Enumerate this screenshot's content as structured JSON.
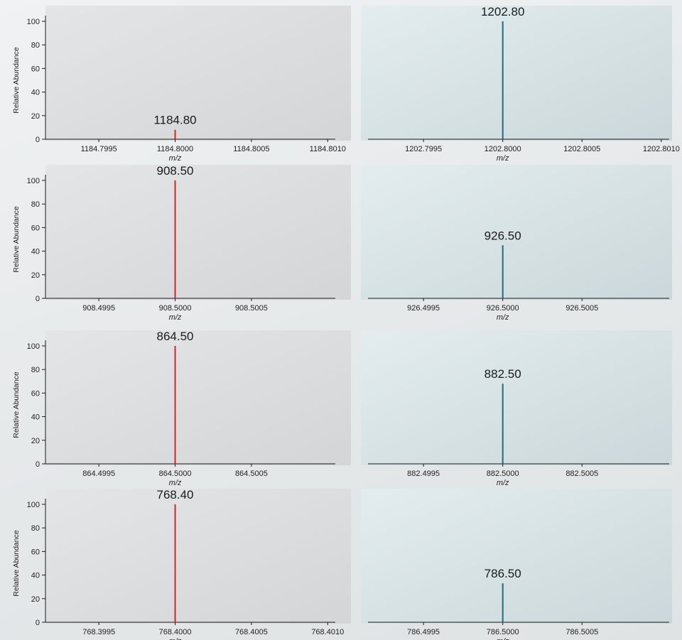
{
  "chart_data": [
    {
      "type": "bar",
      "panel": "left",
      "row": 1,
      "color": "#e02020",
      "ylabel": "Relative Abundance",
      "xlabel": "m/z",
      "xlim": [
        1184.79915,
        1184.80105
      ],
      "ylim": [
        0,
        100
      ],
      "xticks": [
        "1184.7995",
        "1184.8000",
        "1184.8005",
        "1184.8010"
      ],
      "yticks": [
        "0",
        "20",
        "40",
        "60",
        "80",
        "100"
      ],
      "peaks": [
        {
          "x": 1184.8,
          "y": 8,
          "label": "1184.80"
        }
      ]
    },
    {
      "type": "bar",
      "panel": "right",
      "row": 1,
      "color": "#1e6b80",
      "ylabel": "",
      "xlabel": "m/z",
      "xlim": [
        1202.79915,
        1202.80105
      ],
      "ylim": [
        0,
        100
      ],
      "xticks": [
        "1202.7995",
        "1202.8000",
        "1202.8005",
        "1202.8010"
      ],
      "yticks": [],
      "peaks": [
        {
          "x": 1202.8,
          "y": 100,
          "label": "1202.80"
        }
      ]
    },
    {
      "type": "bar",
      "panel": "left",
      "row": 2,
      "color": "#e02020",
      "ylabel": "Relative Abundance",
      "xlabel": "m/z",
      "xlim": [
        908.49915,
        908.50105
      ],
      "ylim": [
        0,
        100
      ],
      "xticks": [
        "908.4995",
        "908.5000",
        "908.5005"
      ],
      "yticks": [
        "0",
        "20",
        "40",
        "60",
        "80",
        "100"
      ],
      "peaks": [
        {
          "x": 908.5,
          "y": 100,
          "label": "908.50"
        }
      ]
    },
    {
      "type": "bar",
      "panel": "right",
      "row": 2,
      "color": "#1e6b80",
      "ylabel": "",
      "xlabel": "m/z",
      "xlim": [
        926.49915,
        926.50105
      ],
      "ylim": [
        0,
        100
      ],
      "xticks": [
        "926.4995",
        "926.5000",
        "926.5005"
      ],
      "yticks": [],
      "peaks": [
        {
          "x": 926.5,
          "y": 45,
          "label": "926.50"
        }
      ]
    },
    {
      "type": "bar",
      "panel": "left",
      "row": 3,
      "color": "#e02020",
      "ylabel": "Relative Abundance",
      "xlabel": "m/z",
      "xlim": [
        864.49915,
        864.50105
      ],
      "ylim": [
        0,
        100
      ],
      "xticks": [
        "864.4995",
        "864.5000",
        "864.5005"
      ],
      "yticks": [
        "0",
        "20",
        "40",
        "60",
        "80",
        "100"
      ],
      "peaks": [
        {
          "x": 864.5,
          "y": 100,
          "label": "864.50"
        }
      ]
    },
    {
      "type": "bar",
      "panel": "right",
      "row": 3,
      "color": "#1e6b80",
      "ylabel": "",
      "xlabel": "m/z",
      "xlim": [
        882.49915,
        882.50105
      ],
      "ylim": [
        0,
        100
      ],
      "xticks": [
        "882.4995",
        "882.5000",
        "882.5005"
      ],
      "yticks": [],
      "peaks": [
        {
          "x": 882.5,
          "y": 68,
          "label": "882.50"
        }
      ]
    },
    {
      "type": "bar",
      "panel": "left",
      "row": 4,
      "color": "#e02020",
      "ylabel": "Relative Abundance",
      "xlabel": "m/z",
      "xlim": [
        768.39915,
        768.40105
      ],
      "ylim": [
        0,
        100
      ],
      "xticks": [
        "768.3995",
        "768.4000",
        "768.4005",
        "768.4010"
      ],
      "yticks": [
        "0",
        "20",
        "40",
        "60",
        "80",
        "100"
      ],
      "peaks": [
        {
          "x": 768.4,
          "y": 100,
          "label": "768.40"
        }
      ]
    },
    {
      "type": "bar",
      "panel": "right",
      "row": 4,
      "color": "#1e6b80",
      "ylabel": "",
      "xlabel": "m/z",
      "xlim": [
        786.49915,
        786.50105
      ],
      "ylim": [
        0,
        100
      ],
      "xticks": [
        "786.4995",
        "786.5000",
        "786.5005"
      ],
      "yticks": [],
      "peaks": [
        {
          "x": 786.5,
          "y": 33,
          "label": "786.50"
        }
      ]
    }
  ]
}
